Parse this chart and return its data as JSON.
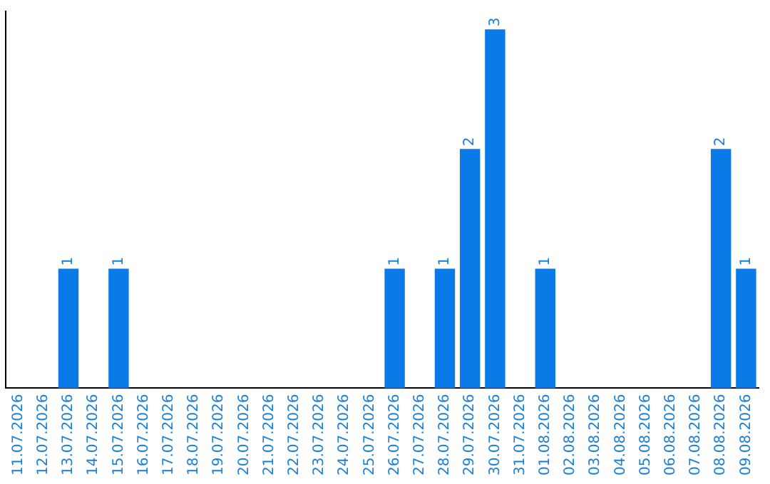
{
  "chart_data": {
    "type": "bar",
    "categories": [
      "11.07.2026",
      "12.07.2026",
      "13.07.2026",
      "14.07.2026",
      "15.07.2026",
      "16.07.2026",
      "17.07.2026",
      "18.07.2026",
      "19.07.2026",
      "20.07.2026",
      "21.07.2026",
      "22.07.2026",
      "23.07.2026",
      "24.07.2026",
      "25.07.2026",
      "26.07.2026",
      "27.07.2026",
      "28.07.2026",
      "29.07.2026",
      "30.07.2026",
      "31.07.2026",
      "01.08.2026",
      "02.08.2026",
      "03.08.2026",
      "04.08.2026",
      "05.08.2026",
      "06.08.2026",
      "07.08.2026",
      "08.08.2026",
      "09.08.2026"
    ],
    "values": [
      0,
      0,
      1,
      0,
      1,
      0,
      0,
      0,
      0,
      0,
      0,
      0,
      0,
      0,
      0,
      1,
      0,
      1,
      2,
      3,
      0,
      1,
      0,
      0,
      0,
      0,
      0,
      0,
      2,
      1
    ],
    "value_labels": [
      null,
      null,
      "1",
      null,
      "1",
      null,
      null,
      null,
      null,
      null,
      null,
      null,
      null,
      null,
      null,
      "1",
      null,
      "1",
      "2",
      "3",
      null,
      "1",
      null,
      null,
      null,
      null,
      null,
      null,
      "2",
      "1"
    ],
    "color": "#0a7be6",
    "ylim": [
      0,
      3.15
    ],
    "tick_labels": "x",
    "grid": false,
    "legend": false
  }
}
